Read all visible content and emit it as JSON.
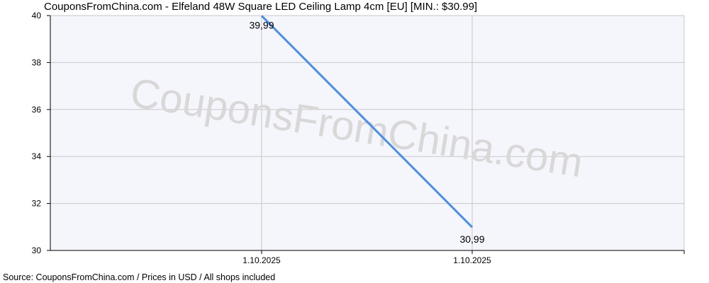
{
  "title": "CouponsFromChina.com - Elfeland 48W Square LED Ceiling Lamp 4cm [EU] [MIN.: $30.99]",
  "source": "Source: CouponsFromChina.com / Prices in USD / All shops included",
  "watermark": "CouponsFromChina.com",
  "chart_data": {
    "type": "line",
    "title": "CouponsFromChina.com - Elfeland 48W Square LED Ceiling Lamp 4cm [EU] [MIN.: $30.99]",
    "xlabel": "",
    "ylabel": "",
    "x": [
      "1.10.2025",
      "1.10.2025"
    ],
    "series": [
      {
        "values": [
          39.99,
          30.99
        ],
        "labels": [
          "39,99",
          "30,99"
        ]
      }
    ],
    "ylim": [
      30,
      40
    ],
    "yticks": [
      "30",
      "32",
      "34",
      "36",
      "38",
      "40"
    ],
    "grid": true,
    "legend": "none",
    "colors": {
      "line": "#4a8fe7",
      "plot_bg": "#f5f5fc",
      "grid": "#c8c8c8",
      "axis": "#000000"
    }
  }
}
